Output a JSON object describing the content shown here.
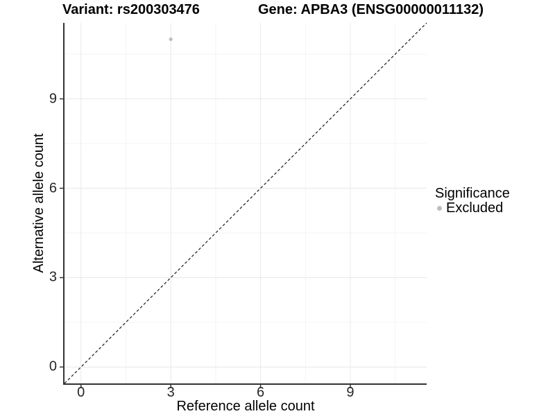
{
  "header": {
    "variant_title": "Variant: rs200303476",
    "gene_title": "Gene: APBA3 (ENSG00000011132)"
  },
  "chart_data": {
    "type": "scatter",
    "title_left": "Variant: rs200303476",
    "title_right": "Gene: APBA3 (ENSG00000011132)",
    "xlabel": "Reference allele count",
    "ylabel": "Alternative allele count",
    "xlim": [
      -0.55,
      11.55
    ],
    "ylim": [
      -0.55,
      11.55
    ],
    "x_ticks": [
      0,
      3,
      6,
      9
    ],
    "y_ticks": [
      0,
      3,
      6,
      9
    ],
    "x_minor_ticks": [
      1.5,
      4.5,
      7.5,
      10.5
    ],
    "y_minor_ticks": [
      1.5,
      4.5,
      7.5,
      10.5
    ],
    "grid": "major+minor",
    "points": [
      {
        "x": 3,
        "y": 11,
        "significance": "Excluded"
      }
    ],
    "reference_line": {
      "type": "identity-diagonal",
      "style": "dashed",
      "from": [
        -0.55,
        -0.55
      ],
      "to": [
        11.55,
        11.55
      ]
    },
    "legend": {
      "title": "Significance",
      "position": "right",
      "items": [
        {
          "label": "Excluded",
          "color": "#bebebe"
        }
      ]
    },
    "colors": {
      "point": "#bebebe",
      "reference_line": "#1a1a1a",
      "grid_major": "#e8e8e8",
      "grid_minor": "#f3f3f3",
      "axis_line": "#333333",
      "tick_text": "#262626",
      "background": "#ffffff"
    }
  }
}
